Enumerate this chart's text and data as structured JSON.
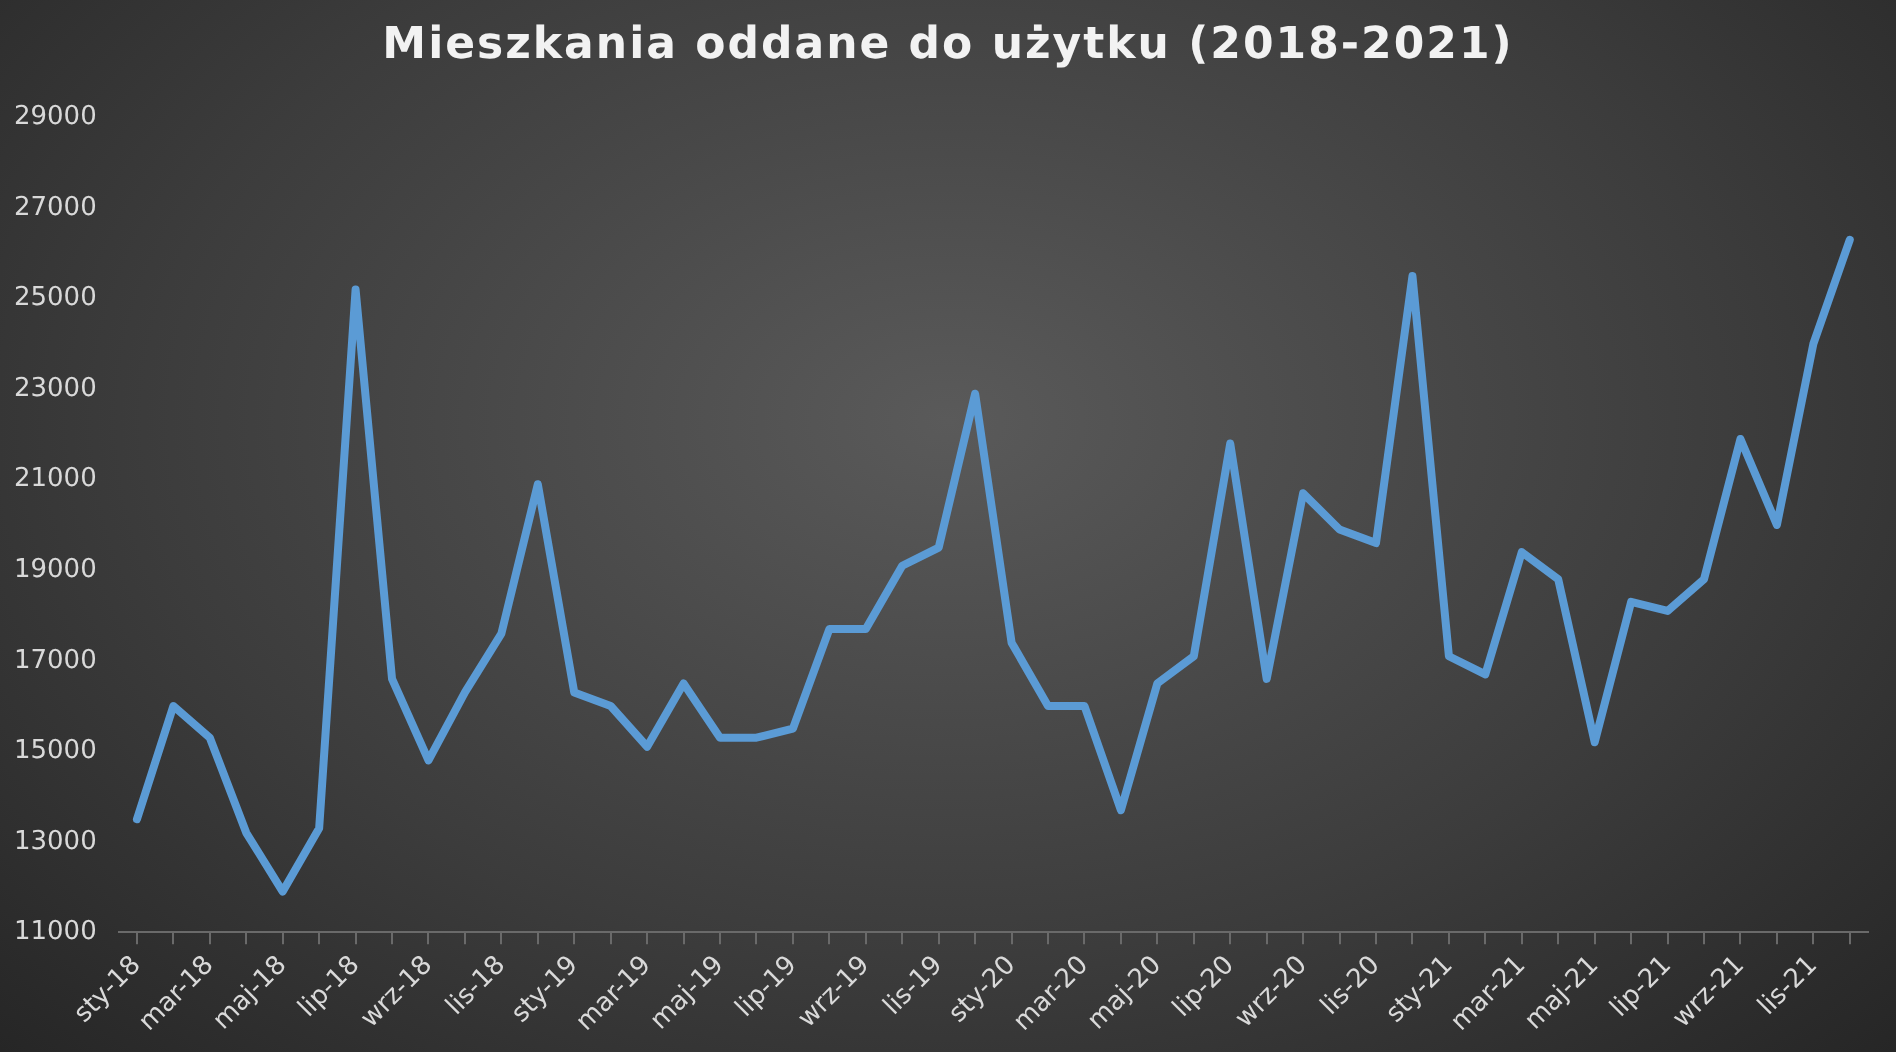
{
  "chart_data": {
    "type": "line",
    "title": "Mieszkania oddane do użytku (2018-2021)",
    "categories": [
      "sty-18",
      null,
      "mar-18",
      null,
      "maj-18",
      null,
      "lip-18",
      null,
      "wrz-18",
      null,
      "lis-18",
      null,
      "sty-19",
      null,
      "mar-19",
      null,
      "maj-19",
      null,
      "lip-19",
      null,
      "wrz-19",
      null,
      "lis-19",
      null,
      "sty-20",
      null,
      "mar-20",
      null,
      "maj-20",
      null,
      "lip-20",
      null,
      "wrz-20",
      null,
      "lis-20",
      null,
      "sty-21",
      null,
      "mar-21",
      null,
      "maj-21",
      null,
      "lip-21",
      null,
      "wrz-21",
      null,
      "lis-21",
      null
    ],
    "series": [
      {
        "color": "#5b9bd5",
        "values": [
          13500,
          16000,
          15300,
          13200,
          11900,
          13300,
          25200,
          16600,
          14800,
          16300,
          17600,
          20900,
          16300,
          16000,
          15100,
          16500,
          15300,
          15300,
          15500,
          17700,
          17700,
          19100,
          19500,
          22900,
          17400,
          16000,
          16000,
          13700,
          16500,
          17100,
          21800,
          16600,
          20700,
          19900,
          19600,
          25500,
          17100,
          16700,
          19400,
          18800,
          15200,
          18300,
          18100,
          18800,
          21900,
          20000,
          24000,
          26300
        ]
      }
    ],
    "ylim": [
      11000,
      29000
    ],
    "yticks": [
      11000,
      13000,
      15000,
      17000,
      19000,
      21000,
      23000,
      25000,
      27000,
      29000
    ],
    "grid": false,
    "legend": false,
    "marker": "none",
    "line_style": "solid"
  }
}
